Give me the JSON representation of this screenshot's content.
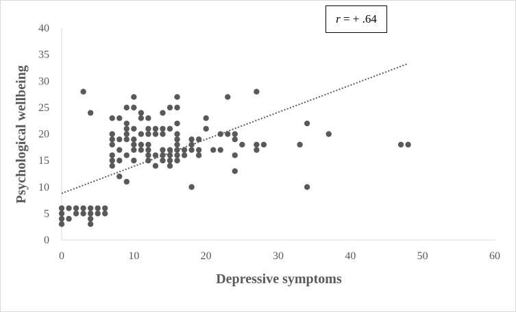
{
  "chart_data": {
    "type": "scatter",
    "xlabel": "Depressive symptoms",
    "ylabel": "Psychological wellbeing",
    "xlim": [
      0,
      60
    ],
    "ylim": [
      0,
      40
    ],
    "xticks": [
      0,
      10,
      20,
      30,
      40,
      50,
      60
    ],
    "yticks": [
      0,
      5,
      10,
      15,
      20,
      25,
      30,
      35,
      40
    ],
    "grid": false,
    "annotation": {
      "var": "r",
      "text": " = + .64"
    },
    "trendline": {
      "style": "dotted",
      "x": [
        0,
        48
      ],
      "y": [
        8.8,
        33.3
      ]
    },
    "colors": {
      "points": "#595959",
      "trendline": "#595959",
      "axis": "#d9d9d9"
    },
    "points": [
      [
        0,
        3
      ],
      [
        0,
        4
      ],
      [
        0,
        5
      ],
      [
        0,
        6
      ],
      [
        1,
        4
      ],
      [
        1,
        6
      ],
      [
        2,
        5
      ],
      [
        2,
        6
      ],
      [
        3,
        5
      ],
      [
        3,
        6
      ],
      [
        3,
        28
      ],
      [
        4,
        3
      ],
      [
        4,
        4
      ],
      [
        4,
        5
      ],
      [
        4,
        6
      ],
      [
        4,
        24
      ],
      [
        5,
        5
      ],
      [
        5,
        6
      ],
      [
        6,
        5
      ],
      [
        6,
        6
      ],
      [
        7,
        14
      ],
      [
        7,
        15
      ],
      [
        7,
        16
      ],
      [
        7,
        18
      ],
      [
        7,
        19
      ],
      [
        7,
        20
      ],
      [
        7,
        23
      ],
      [
        8,
        12
      ],
      [
        8,
        15
      ],
      [
        8,
        17
      ],
      [
        8,
        19
      ],
      [
        8,
        23
      ],
      [
        9,
        11
      ],
      [
        9,
        16
      ],
      [
        9,
        19
      ],
      [
        9,
        20
      ],
      [
        9,
        21
      ],
      [
        9,
        22
      ],
      [
        9,
        25
      ],
      [
        10,
        15
      ],
      [
        10,
        17
      ],
      [
        10,
        18
      ],
      [
        10,
        19
      ],
      [
        10,
        21
      ],
      [
        10,
        25
      ],
      [
        10,
        27
      ],
      [
        11,
        17
      ],
      [
        11,
        18
      ],
      [
        11,
        20
      ],
      [
        11,
        23
      ],
      [
        11,
        24
      ],
      [
        12,
        15
      ],
      [
        12,
        16
      ],
      [
        12,
        17
      ],
      [
        12,
        18
      ],
      [
        12,
        20
      ],
      [
        12,
        21
      ],
      [
        12,
        23
      ],
      [
        13,
        14
      ],
      [
        13,
        16
      ],
      [
        13,
        20
      ],
      [
        13,
        21
      ],
      [
        14,
        15
      ],
      [
        14,
        16
      ],
      [
        14,
        17
      ],
      [
        14,
        20
      ],
      [
        14,
        21
      ],
      [
        14,
        24
      ],
      [
        15,
        14
      ],
      [
        15,
        15
      ],
      [
        15,
        16
      ],
      [
        15,
        17
      ],
      [
        15,
        21
      ],
      [
        15,
        25
      ],
      [
        16,
        15
      ],
      [
        16,
        16
      ],
      [
        16,
        17
      ],
      [
        16,
        18
      ],
      [
        16,
        19
      ],
      [
        16,
        20
      ],
      [
        16,
        22
      ],
      [
        16,
        25
      ],
      [
        16,
        27
      ],
      [
        17,
        16
      ],
      [
        17,
        17
      ],
      [
        18,
        10
      ],
      [
        18,
        17
      ],
      [
        18,
        18
      ],
      [
        18,
        19
      ],
      [
        19,
        16
      ],
      [
        19,
        17
      ],
      [
        19,
        19
      ],
      [
        20,
        21
      ],
      [
        20,
        23
      ],
      [
        21,
        17
      ],
      [
        22,
        17
      ],
      [
        22,
        20
      ],
      [
        23,
        20
      ],
      [
        23,
        27
      ],
      [
        24,
        13
      ],
      [
        24,
        16
      ],
      [
        24,
        19
      ],
      [
        24,
        20
      ],
      [
        25,
        18
      ],
      [
        27,
        17
      ],
      [
        27,
        18
      ],
      [
        27,
        28
      ],
      [
        28,
        18
      ],
      [
        33,
        18
      ],
      [
        34,
        10
      ],
      [
        34,
        22
      ],
      [
        37,
        20
      ],
      [
        47,
        18
      ],
      [
        48,
        18
      ]
    ]
  }
}
